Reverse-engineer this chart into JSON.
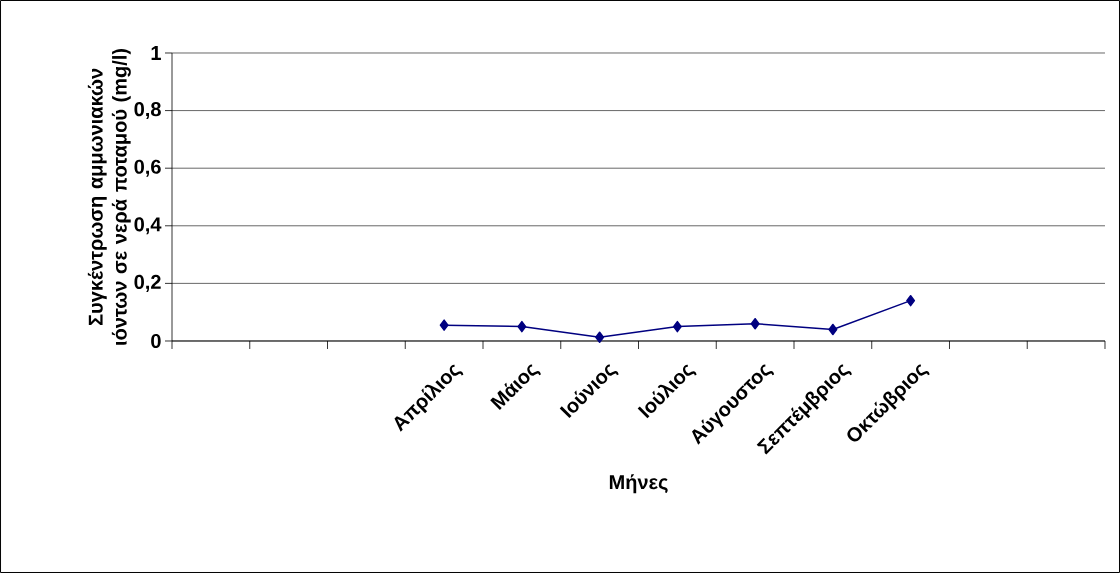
{
  "chart_data": {
    "type": "line",
    "xlabel": "Μήνες",
    "ylabel": "Συγκέντρωση αμμωνιακών ιόντων σε νερά ποταμού (mg/l)",
    "categories": [
      null,
      null,
      null,
      "Απρίλιος",
      "Μάιος",
      "Ιούνιος",
      "Ιούλιος",
      "Αύγουστος",
      "Σεπτέμβριος",
      "Οκτώβριος",
      null,
      null
    ],
    "values": [
      null,
      null,
      null,
      0.055,
      0.05,
      0.013,
      0.05,
      0.06,
      0.04,
      0.14,
      null,
      null
    ],
    "color": "#000080",
    "marker": "diamond",
    "line_style": "solid",
    "grid": "y",
    "ylim": [
      0,
      1
    ],
    "yticks": [
      0,
      {
        "value": 0.2,
        "label": "0,2"
      },
      {
        "value": 0.4,
        "label": "0,4"
      },
      {
        "value": 0.6,
        "label": "0,6"
      },
      {
        "value": 0.8,
        "label": "0,8"
      },
      1
    ]
  }
}
